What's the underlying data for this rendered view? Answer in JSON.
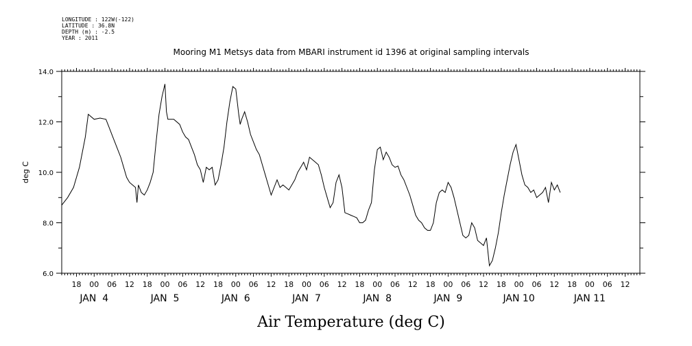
{
  "header": {
    "lines": [
      "LONGITUDE : 122W(-122)",
      "LATITUDE : 36.8N",
      "DEPTH (m) : -2.5",
      "YEAR : 2011"
    ]
  },
  "chart_data": {
    "type": "line",
    "title": "Mooring M1 Metsys data from MBARI instrument id 1396 at original sampling intervals",
    "xlabel": "Air Temperature (deg C)",
    "ylabel": "deg C",
    "ylim": [
      6.0,
      14.0
    ],
    "yticks": [
      "6.0",
      "8.0",
      "10.0",
      "12.0",
      "14.0"
    ],
    "xlim": [
      "2011-01-03 13:00",
      "2011-01-11 17:00"
    ],
    "hour_tick_labels": [
      {
        "label": "18",
        "time": "2011-01-03 18:00"
      },
      {
        "label": "00",
        "time": "2011-01-04 00:00"
      },
      {
        "label": "06",
        "time": "2011-01-04 06:00"
      },
      {
        "label": "12",
        "time": "2011-01-04 12:00"
      },
      {
        "label": "18",
        "time": "2011-01-04 18:00"
      },
      {
        "label": "00",
        "time": "2011-01-05 00:00"
      },
      {
        "label": "06",
        "time": "2011-01-05 06:00"
      },
      {
        "label": "12",
        "time": "2011-01-05 12:00"
      },
      {
        "label": "18",
        "time": "2011-01-05 18:00"
      },
      {
        "label": "00",
        "time": "2011-01-06 00:00"
      },
      {
        "label": "06",
        "time": "2011-01-06 06:00"
      },
      {
        "label": "12",
        "time": "2011-01-06 12:00"
      },
      {
        "label": "18",
        "time": "2011-01-06 18:00"
      },
      {
        "label": "00",
        "time": "2011-01-07 00:00"
      },
      {
        "label": "06",
        "time": "2011-01-07 06:00"
      },
      {
        "label": "12",
        "time": "2011-01-07 12:00"
      },
      {
        "label": "18",
        "time": "2011-01-07 18:00"
      },
      {
        "label": "00",
        "time": "2011-01-08 00:00"
      },
      {
        "label": "06",
        "time": "2011-01-08 06:00"
      },
      {
        "label": "12",
        "time": "2011-01-08 12:00"
      },
      {
        "label": "18",
        "time": "2011-01-08 18:00"
      },
      {
        "label": "00",
        "time": "2011-01-09 00:00"
      },
      {
        "label": "06",
        "time": "2011-01-09 06:00"
      },
      {
        "label": "12",
        "time": "2011-01-09 12:00"
      },
      {
        "label": "18",
        "time": "2011-01-09 18:00"
      },
      {
        "label": "00",
        "time": "2011-01-10 00:00"
      },
      {
        "label": "06",
        "time": "2011-01-10 06:00"
      },
      {
        "label": "12",
        "time": "2011-01-10 12:00"
      },
      {
        "label": "18",
        "time": "2011-01-10 18:00"
      },
      {
        "label": "00",
        "time": "2011-01-11 00:00"
      },
      {
        "label": "06",
        "time": "2011-01-11 06:00"
      },
      {
        "label": "12",
        "time": "2011-01-11 12:00"
      }
    ],
    "day_labels": [
      {
        "label": "JAN  4",
        "time": "2011-01-04 00:00"
      },
      {
        "label": "JAN  5",
        "time": "2011-01-05 00:00"
      },
      {
        "label": "JAN  6",
        "time": "2011-01-06 00:00"
      },
      {
        "label": "JAN  7",
        "time": "2011-01-07 00:00"
      },
      {
        "label": "JAN  8",
        "time": "2011-01-08 00:00"
      },
      {
        "label": "JAN  9",
        "time": "2011-01-09 00:00"
      },
      {
        "label": "JAN 10",
        "time": "2011-01-10 00:00"
      },
      {
        "label": "JAN 11",
        "time": "2011-01-11 00:00"
      }
    ],
    "grid": false,
    "series": [
      {
        "color": "#000000",
        "points": [
          [
            "2011-01-03 13:00",
            8.7
          ],
          [
            "2011-01-03 15:00",
            9.0
          ],
          [
            "2011-01-03 17:00",
            9.4
          ],
          [
            "2011-01-03 19:00",
            10.2
          ],
          [
            "2011-01-03 21:00",
            11.4
          ],
          [
            "2011-01-03 22:00",
            12.3
          ],
          [
            "2011-01-04 00:00",
            12.1
          ],
          [
            "2011-01-04 02:00",
            12.15
          ],
          [
            "2011-01-04 04:00",
            12.1
          ],
          [
            "2011-01-04 05:00",
            11.8
          ],
          [
            "2011-01-04 06:00",
            11.5
          ],
          [
            "2011-01-04 07:00",
            11.2
          ],
          [
            "2011-01-04 08:00",
            10.9
          ],
          [
            "2011-01-04 09:00",
            10.6
          ],
          [
            "2011-01-04 10:00",
            10.2
          ],
          [
            "2011-01-04 11:00",
            9.8
          ],
          [
            "2011-01-04 12:00",
            9.6
          ],
          [
            "2011-01-04 13:00",
            9.5
          ],
          [
            "2011-01-04 14:00",
            9.4
          ],
          [
            "2011-01-04 14:30",
            8.8
          ],
          [
            "2011-01-04 15:00",
            9.5
          ],
          [
            "2011-01-04 16:00",
            9.2
          ],
          [
            "2011-01-04 17:00",
            9.1
          ],
          [
            "2011-01-04 18:00",
            9.3
          ],
          [
            "2011-01-04 19:00",
            9.6
          ],
          [
            "2011-01-04 20:00",
            10.0
          ],
          [
            "2011-01-04 21:00",
            11.2
          ],
          [
            "2011-01-04 22:00",
            12.3
          ],
          [
            "2011-01-04 23:00",
            13.0
          ],
          [
            "2011-01-05 00:00",
            13.5
          ],
          [
            "2011-01-05 00:30",
            12.4
          ],
          [
            "2011-01-05 01:00",
            12.1
          ],
          [
            "2011-01-05 03:00",
            12.1
          ],
          [
            "2011-01-05 05:00",
            11.9
          ],
          [
            "2011-01-05 06:00",
            11.6
          ],
          [
            "2011-01-05 07:00",
            11.4
          ],
          [
            "2011-01-05 08:00",
            11.3
          ],
          [
            "2011-01-05 09:00",
            11.0
          ],
          [
            "2011-01-05 10:00",
            10.7
          ],
          [
            "2011-01-05 11:00",
            10.3
          ],
          [
            "2011-01-05 12:00",
            10.1
          ],
          [
            "2011-01-05 13:00",
            9.6
          ],
          [
            "2011-01-05 14:00",
            10.2
          ],
          [
            "2011-01-05 15:00",
            10.1
          ],
          [
            "2011-01-05 16:00",
            10.2
          ],
          [
            "2011-01-05 17:00",
            9.5
          ],
          [
            "2011-01-05 18:00",
            9.7
          ],
          [
            "2011-01-05 19:00",
            10.3
          ],
          [
            "2011-01-05 20:00",
            11.0
          ],
          [
            "2011-01-05 21:00",
            12.0
          ],
          [
            "2011-01-05 22:00",
            12.8
          ],
          [
            "2011-01-05 23:00",
            13.4
          ],
          [
            "2011-01-06 00:00",
            13.3
          ],
          [
            "2011-01-06 01:00",
            12.3
          ],
          [
            "2011-01-06 01:30",
            11.9
          ],
          [
            "2011-01-06 02:00",
            12.1
          ],
          [
            "2011-01-06 03:00",
            12.4
          ],
          [
            "2011-01-06 04:00",
            12.0
          ],
          [
            "2011-01-06 05:00",
            11.5
          ],
          [
            "2011-01-06 06:00",
            11.2
          ],
          [
            "2011-01-06 07:00",
            10.9
          ],
          [
            "2011-01-06 08:00",
            10.7
          ],
          [
            "2011-01-06 09:00",
            10.3
          ],
          [
            "2011-01-06 10:00",
            9.9
          ],
          [
            "2011-01-06 11:00",
            9.5
          ],
          [
            "2011-01-06 12:00",
            9.1
          ],
          [
            "2011-01-06 13:00",
            9.4
          ],
          [
            "2011-01-06 14:00",
            9.7
          ],
          [
            "2011-01-06 15:00",
            9.4
          ],
          [
            "2011-01-06 16:00",
            9.5
          ],
          [
            "2011-01-06 17:00",
            9.4
          ],
          [
            "2011-01-06 18:00",
            9.3
          ],
          [
            "2011-01-06 19:00",
            9.5
          ],
          [
            "2011-01-06 20:00",
            9.7
          ],
          [
            "2011-01-06 21:00",
            10.0
          ],
          [
            "2011-01-06 22:00",
            10.2
          ],
          [
            "2011-01-06 23:00",
            10.4
          ],
          [
            "2011-01-07 00:00",
            10.1
          ],
          [
            "2011-01-07 01:00",
            10.6
          ],
          [
            "2011-01-07 02:00",
            10.5
          ],
          [
            "2011-01-07 03:00",
            10.4
          ],
          [
            "2011-01-07 04:00",
            10.3
          ],
          [
            "2011-01-07 05:00",
            9.9
          ],
          [
            "2011-01-07 06:00",
            9.4
          ],
          [
            "2011-01-07 07:00",
            9.0
          ],
          [
            "2011-01-07 08:00",
            8.6
          ],
          [
            "2011-01-07 09:00",
            8.8
          ],
          [
            "2011-01-07 10:00",
            9.6
          ],
          [
            "2011-01-07 11:00",
            9.9
          ],
          [
            "2011-01-07 12:00",
            9.4
          ],
          [
            "2011-01-07 13:00",
            8.4
          ],
          [
            "2011-01-07 14:00",
            8.35
          ],
          [
            "2011-01-07 15:00",
            8.3
          ],
          [
            "2011-01-07 16:00",
            8.25
          ],
          [
            "2011-01-07 17:00",
            8.2
          ],
          [
            "2011-01-07 18:00",
            8.0
          ],
          [
            "2011-01-07 19:00",
            8.0
          ],
          [
            "2011-01-07 20:00",
            8.1
          ],
          [
            "2011-01-07 21:00",
            8.5
          ],
          [
            "2011-01-07 22:00",
            8.8
          ],
          [
            "2011-01-07 23:00",
            10.1
          ],
          [
            "2011-01-08 00:00",
            10.9
          ],
          [
            "2011-01-08 01:00",
            11.0
          ],
          [
            "2011-01-08 02:00",
            10.5
          ],
          [
            "2011-01-08 03:00",
            10.8
          ],
          [
            "2011-01-08 04:00",
            10.6
          ],
          [
            "2011-01-08 05:00",
            10.3
          ],
          [
            "2011-01-08 06:00",
            10.2
          ],
          [
            "2011-01-08 07:00",
            10.25
          ],
          [
            "2011-01-08 08:00",
            9.9
          ],
          [
            "2011-01-08 09:00",
            9.7
          ],
          [
            "2011-01-08 10:00",
            9.4
          ],
          [
            "2011-01-08 11:00",
            9.1
          ],
          [
            "2011-01-08 12:00",
            8.7
          ],
          [
            "2011-01-08 13:00",
            8.3
          ],
          [
            "2011-01-08 14:00",
            8.1
          ],
          [
            "2011-01-08 15:00",
            8.0
          ],
          [
            "2011-01-08 16:00",
            7.8
          ],
          [
            "2011-01-08 17:00",
            7.7
          ],
          [
            "2011-01-08 18:00",
            7.7
          ],
          [
            "2011-01-08 19:00",
            8.0
          ],
          [
            "2011-01-08 20:00",
            8.8
          ],
          [
            "2011-01-08 21:00",
            9.2
          ],
          [
            "2011-01-08 22:00",
            9.3
          ],
          [
            "2011-01-08 23:00",
            9.2
          ],
          [
            "2011-01-09 00:00",
            9.6
          ],
          [
            "2011-01-09 01:00",
            9.4
          ],
          [
            "2011-01-09 02:00",
            9.0
          ],
          [
            "2011-01-09 03:00",
            8.5
          ],
          [
            "2011-01-09 04:00",
            8.0
          ],
          [
            "2011-01-09 05:00",
            7.5
          ],
          [
            "2011-01-09 06:00",
            7.4
          ],
          [
            "2011-01-09 07:00",
            7.5
          ],
          [
            "2011-01-09 08:00",
            8.0
          ],
          [
            "2011-01-09 09:00",
            7.8
          ],
          [
            "2011-01-09 10:00",
            7.3
          ],
          [
            "2011-01-09 11:00",
            7.2
          ],
          [
            "2011-01-09 12:00",
            7.1
          ],
          [
            "2011-01-09 13:00",
            7.4
          ],
          [
            "2011-01-09 14:00",
            6.3
          ],
          [
            "2011-01-09 15:00",
            6.5
          ],
          [
            "2011-01-09 16:00",
            7.0
          ],
          [
            "2011-01-09 17:00",
            7.6
          ],
          [
            "2011-01-09 18:00",
            8.4
          ],
          [
            "2011-01-09 19:00",
            9.1
          ],
          [
            "2011-01-09 20:00",
            9.7
          ],
          [
            "2011-01-09 21:00",
            10.3
          ],
          [
            "2011-01-09 22:00",
            10.8
          ],
          [
            "2011-01-09 23:00",
            11.1
          ],
          [
            "2011-01-10 00:00",
            10.5
          ],
          [
            "2011-01-10 01:00",
            9.9
          ],
          [
            "2011-01-10 02:00",
            9.5
          ],
          [
            "2011-01-10 03:00",
            9.4
          ],
          [
            "2011-01-10 04:00",
            9.2
          ],
          [
            "2011-01-10 05:00",
            9.3
          ],
          [
            "2011-01-10 06:00",
            9.0
          ],
          [
            "2011-01-10 07:00",
            9.1
          ],
          [
            "2011-01-10 08:00",
            9.2
          ],
          [
            "2011-01-10 09:00",
            9.4
          ],
          [
            "2011-01-10 10:00",
            8.8
          ],
          [
            "2011-01-10 11:00",
            9.6
          ],
          [
            "2011-01-10 12:00",
            9.3
          ],
          [
            "2011-01-10 13:00",
            9.5
          ],
          [
            "2011-01-10 14:00",
            9.2
          ]
        ]
      }
    ]
  }
}
